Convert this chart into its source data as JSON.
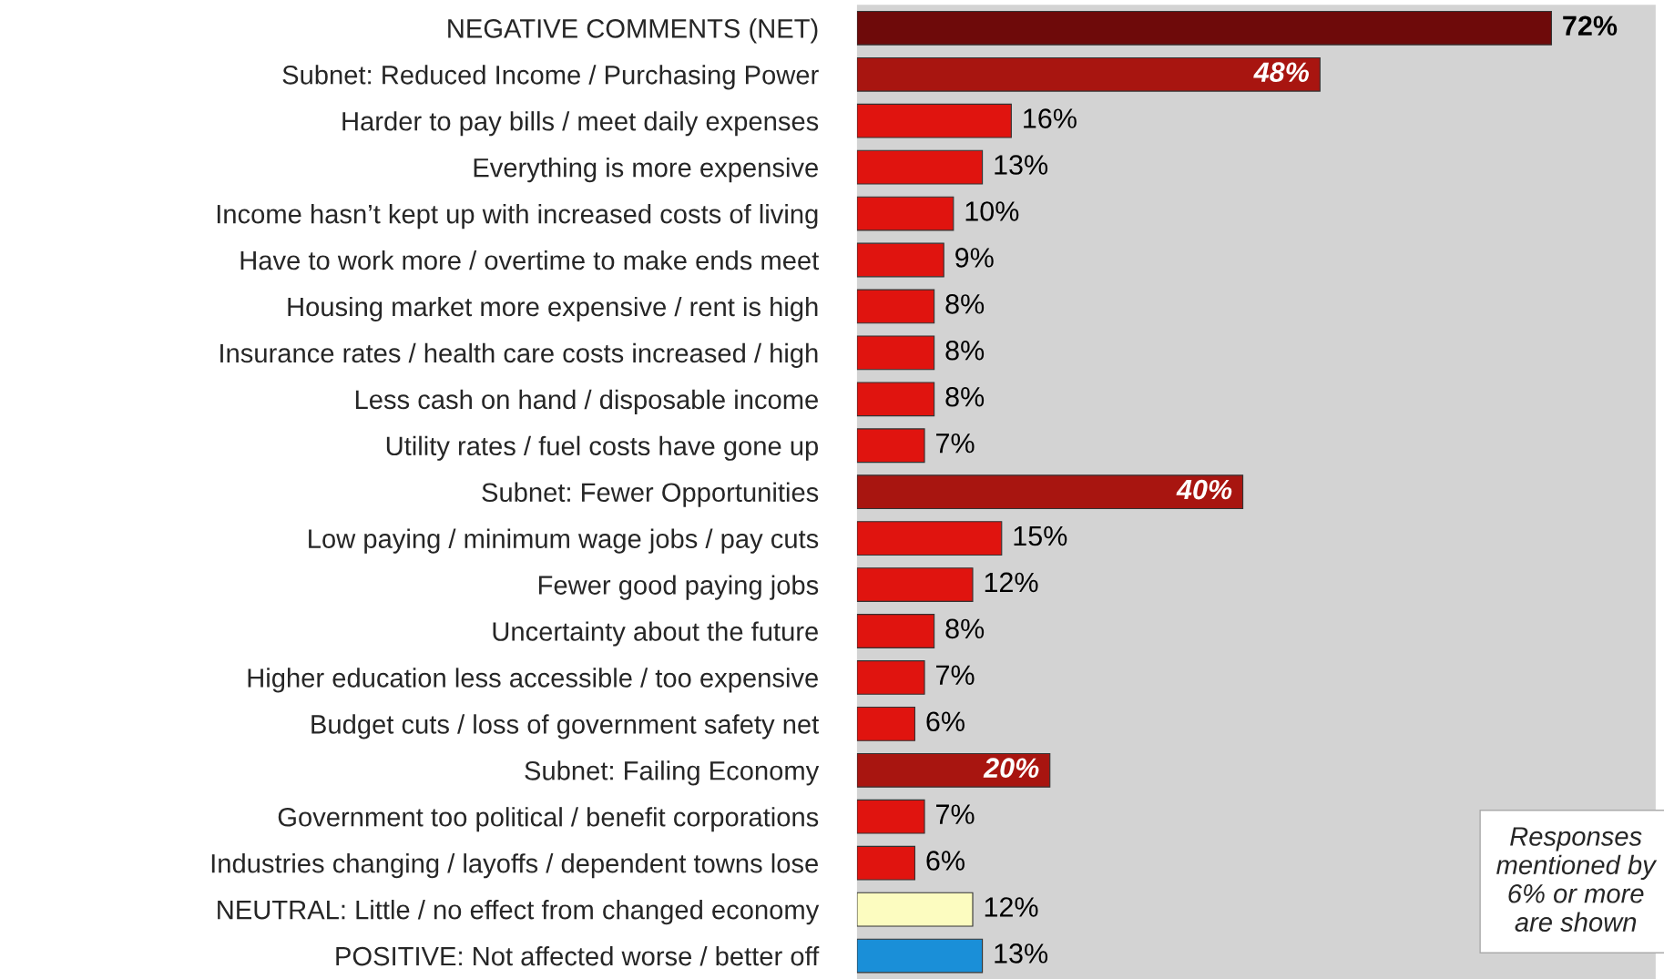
{
  "chart_data": {
    "type": "bar",
    "orientation": "horizontal",
    "categories": [
      "NEGATIVE COMMENTS (NET)",
      "Subnet: Reduced Income / Purchasing Power",
      "Harder to pay bills / meet daily expenses",
      "Everything is more expensive",
      "Income hasn’t kept up with increased costs of living",
      "Have to work more / overtime to make ends meet",
      "Housing market more expensive / rent is high",
      "Insurance rates / health care costs increased / high",
      "Less cash on hand / disposable income",
      "Utility rates / fuel costs have gone up",
      "Subnet: Fewer Opportunities",
      "Low paying / minimum wage jobs / pay cuts",
      "Fewer good paying jobs",
      "Uncertainty about the future",
      "Higher education less accessible / too expensive",
      "Budget cuts / loss of government safety net",
      "Subnet: Failing Economy",
      "Government too political / benefit corporations",
      "Industries changing / layoffs / dependent towns lose",
      "NEUTRAL: Little / no effect from changed economy",
      "POSITIVE: Not affected worse / better off"
    ],
    "values": [
      72,
      48,
      16,
      13,
      10,
      9,
      8,
      8,
      8,
      7,
      40,
      15,
      12,
      8,
      7,
      6,
      20,
      7,
      6,
      12,
      13
    ],
    "value_labels": [
      "72%",
      "48%",
      "16%",
      "13%",
      "10%",
      "9%",
      "8%",
      "8%",
      "8%",
      "7%",
      "40%",
      "15%",
      "12%",
      "8%",
      "7%",
      "6%",
      "20%",
      "7%",
      "6%",
      "12%",
      "13%"
    ],
    "colors": [
      "#6e0a0a",
      "#a81510",
      "#e0140f",
      "#e0140f",
      "#e0140f",
      "#e0140f",
      "#e0140f",
      "#e0140f",
      "#e0140f",
      "#e0140f",
      "#a81510",
      "#e0140f",
      "#e0140f",
      "#e0140f",
      "#e0140f",
      "#e0140f",
      "#a81510",
      "#e0140f",
      "#e0140f",
      "#fcfcc0",
      "#1a8fd8"
    ],
    "annotations": [
      "Responses mentioned by 6% or more are shown"
    ],
    "grid": false,
    "legend": false
  }
}
